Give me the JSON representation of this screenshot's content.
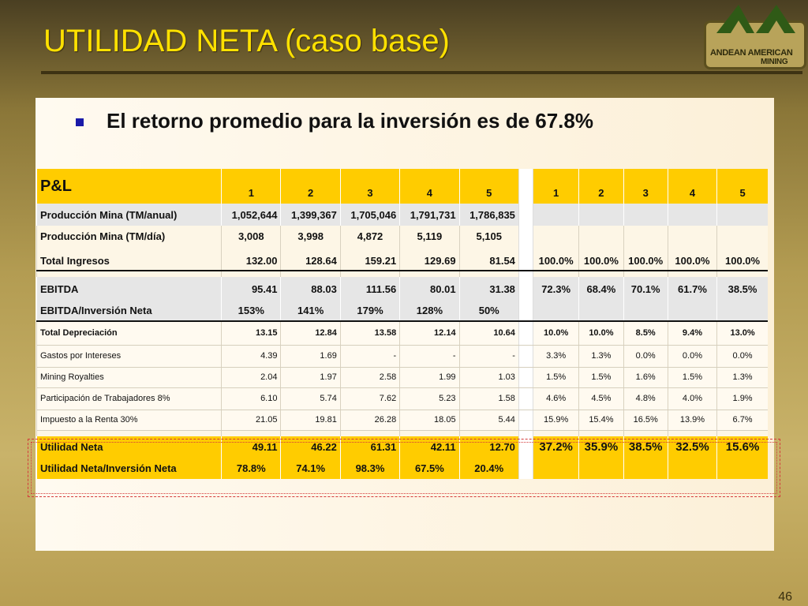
{
  "slide": {
    "title": "UTILIDAD NETA (caso base)",
    "headline": "El retorno promedio para la inversión es de 67.8%",
    "page_number": "46"
  },
  "logo": {
    "line1": "ANDEAN AMERICAN",
    "line2": "MINING"
  },
  "table": {
    "header": {
      "label": "P&L",
      "years_left": [
        "1",
        "2",
        "3",
        "4",
        "5"
      ],
      "years_right": [
        "1",
        "2",
        "3",
        "4",
        "5"
      ]
    },
    "rows": {
      "prod_anual": {
        "label": "Producción Mina (TM/anual)",
        "values": [
          "1,052,644",
          "1,399,367",
          "1,705,046",
          "1,791,731",
          "1,786,835"
        ]
      },
      "prod_dia": {
        "label": "Producción Mina (TM/día)",
        "values": [
          "3,008",
          "3,998",
          "4,872",
          "5,119",
          "5,105"
        ]
      },
      "ingresos": {
        "label": "Total Ingresos",
        "values": [
          "132.00",
          "128.64",
          "159.21",
          "129.69",
          "81.54"
        ],
        "pct": [
          "100.0%",
          "100.0%",
          "100.0%",
          "100.0%",
          "100.0%"
        ]
      },
      "ebitda": {
        "label": "EBITDA",
        "values": [
          "95.41",
          "88.03",
          "111.56",
          "80.01",
          "31.38"
        ],
        "pct": [
          "72.3%",
          "68.4%",
          "70.1%",
          "61.7%",
          "38.5%"
        ]
      },
      "ebitda_inv": {
        "label": "EBITDA/Inversión Neta",
        "values": [
          "153%",
          "141%",
          "179%",
          "128%",
          "50%"
        ]
      },
      "depreciacion": {
        "label": "Total Depreciación",
        "values": [
          "13.15",
          "12.84",
          "13.58",
          "12.14",
          "10.64"
        ],
        "pct": [
          "10.0%",
          "10.0%",
          "8.5%",
          "9.4%",
          "13.0%"
        ]
      },
      "intereses": {
        "label": "Gastos por Intereses",
        "values": [
          "4.39",
          "1.69",
          "-",
          "-",
          "-"
        ],
        "pct": [
          "3.3%",
          "1.3%",
          "0.0%",
          "0.0%",
          "0.0%"
        ]
      },
      "royalties": {
        "label": "Mining Royalties",
        "values": [
          "2.04",
          "1.97",
          "2.58",
          "1.99",
          "1.03"
        ],
        "pct": [
          "1.5%",
          "1.5%",
          "1.6%",
          "1.5%",
          "1.3%"
        ]
      },
      "trabajadores": {
        "label": "Participación de Trabajadores 8%",
        "values": [
          "6.10",
          "5.74",
          "7.62",
          "5.23",
          "1.58"
        ],
        "pct": [
          "4.6%",
          "4.5%",
          "4.8%",
          "4.0%",
          "1.9%"
        ]
      },
      "impuesto": {
        "label": "Impuesto a la Renta 30%",
        "values": [
          "21.05",
          "19.81",
          "26.28",
          "18.05",
          "5.44"
        ],
        "pct": [
          "15.9%",
          "15.4%",
          "16.5%",
          "13.9%",
          "6.7%"
        ]
      },
      "utilidad": {
        "label": "Utilidad Neta",
        "values": [
          "49.11",
          "46.22",
          "61.31",
          "42.11",
          "12.70"
        ],
        "pct": [
          "37.2%",
          "35.9%",
          "38.5%",
          "32.5%",
          "15.6%"
        ]
      },
      "utilidad_inv": {
        "label": "Utilidad Neta/Inversión Neta",
        "values": [
          "78.8%",
          "74.1%",
          "98.3%",
          "67.5%",
          "20.4%"
        ]
      }
    }
  }
}
